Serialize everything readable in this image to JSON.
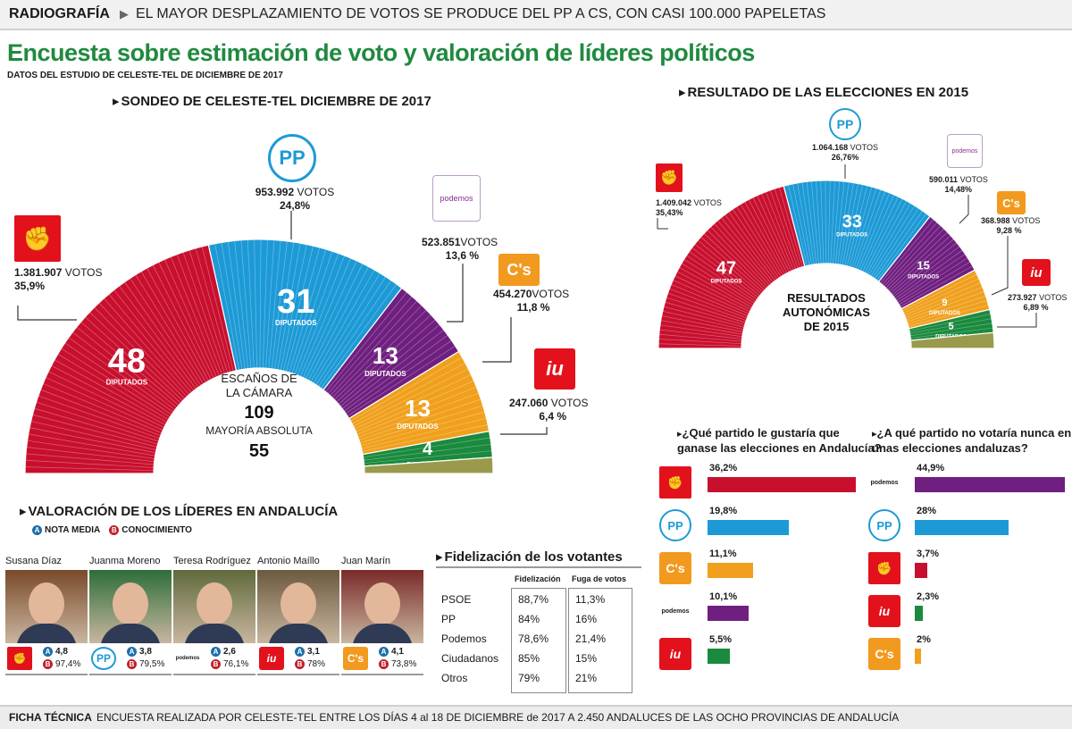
{
  "banner": {
    "kicker": "RADIOGRAFÍA",
    "headline": "EL MAYOR DESPLAZAMIENTO DE VOTOS SE PRODUCE DEL PP A CS, CON CASI 100.000 PAPELETAS"
  },
  "title": "Encuesta sobre estimación de voto y valoración de líderes políticos",
  "subtitle": "DATOS DEL ESTUDIO DE CELESTE-TEL DE DICIEMBRE DE 2017",
  "colors": {
    "psoe": "#c8102e",
    "pp": "#1d9ad6",
    "podemos": "#6f1f7f",
    "cs": "#f0a01d",
    "iu": "#1a8a3e",
    "otros": "#9a9a4c",
    "title_green": "#1f8a3f"
  },
  "chart_data": [
    {
      "type": "pie",
      "subtype": "parliament-semicircle",
      "title": "SONDEO DE CELESTE-TEL DICIEMBRE DE 2017",
      "center_label": [
        "ESCAÑOS DE",
        "LA CÁMARA"
      ],
      "total_seats": "109",
      "majority_label": "MAYORÍA ABSOLUTA",
      "majority_seats": "55",
      "seats_unit": "DIPUTADOS",
      "series": [
        {
          "party": "PSOE",
          "seats": 48,
          "votes": "1.381.907",
          "pct": "35,9%",
          "color_key": "psoe"
        },
        {
          "party": "PP",
          "seats": 31,
          "votes": "953.992",
          "pct": "24,8%",
          "color_key": "pp"
        },
        {
          "party": "Podemos",
          "seats": 13,
          "votes": "523.851",
          "pct": "13,6 %",
          "color_key": "podemos"
        },
        {
          "party": "Cs",
          "seats": 13,
          "votes": "454.270",
          "pct": "11,8 %",
          "color_key": "cs"
        },
        {
          "party": "IU",
          "seats": 4,
          "votes": "247.060",
          "pct": "6,4 %",
          "color_key": "iu"
        },
        {
          "party": "Otros",
          "seats": 0,
          "votes": "",
          "pct": "",
          "color_key": "otros"
        }
      ]
    },
    {
      "type": "pie",
      "subtype": "parliament-semicircle",
      "title": "RESULTADO DE LAS ELECCIONES EN 2015",
      "center_label": [
        "RESULTADOS",
        "AUTONÓMICAS",
        "DE 2015"
      ],
      "seats_unit": "DIPUTADOS",
      "series": [
        {
          "party": "PSOE",
          "seats": 47,
          "votes": "1.409.042",
          "pct": "35,43%",
          "color_key": "psoe"
        },
        {
          "party": "PP",
          "seats": 33,
          "votes": "1.064.168",
          "pct": "26,76%",
          "color_key": "pp"
        },
        {
          "party": "Podemos",
          "seats": 15,
          "votes": "590.011",
          "pct": "14,48%",
          "color_key": "podemos"
        },
        {
          "party": "Cs",
          "seats": 9,
          "votes": "368.988",
          "pct": "9,28 %",
          "color_key": "cs"
        },
        {
          "party": "IU",
          "seats": 5,
          "votes": "273.927",
          "pct": "6,89 %",
          "color_key": "iu"
        },
        {
          "party": "Otros",
          "seats": 0,
          "votes": "",
          "pct": "",
          "color_key": "otros"
        }
      ]
    },
    {
      "type": "bar",
      "orientation": "horizontal",
      "title": "¿Qué partido le gustaría que ganase las elecciones en Andalucía?",
      "categories": [
        "PSOE",
        "PP",
        "Cs",
        "Podemos",
        "IU"
      ],
      "values": [
        36.2,
        19.8,
        11.1,
        10.1,
        5.5
      ],
      "labels": [
        "36,2%",
        "19,8%",
        "11,1%",
        "10,1%",
        "5,5%"
      ],
      "color_keys": [
        "psoe",
        "pp",
        "cs",
        "podemos",
        "iu"
      ]
    },
    {
      "type": "bar",
      "orientation": "horizontal",
      "title": "¿A qué partido no votaría nunca en unas elecciones andaluzas?",
      "categories": [
        "Podemos",
        "PP",
        "PSOE",
        "IU",
        "Cs"
      ],
      "values": [
        44.9,
        28,
        3.7,
        2.3,
        2
      ],
      "labels": [
        "44,9%",
        "28%",
        "3,7%",
        "2,3%",
        "2%"
      ],
      "color_keys": [
        "podemos",
        "pp",
        "psoe",
        "iu",
        "cs"
      ]
    },
    {
      "type": "table",
      "title": "Fidelización de los votantes",
      "columns": [
        "",
        "Fidelización",
        "Fuga de votos"
      ],
      "rows": [
        [
          "PSOE",
          "88,7%",
          "11,3%"
        ],
        [
          "PP",
          "84%",
          "16%"
        ],
        [
          "Podemos",
          "78,6%",
          "21,4%"
        ],
        [
          "Ciudadanos",
          "85%",
          "15%"
        ],
        [
          "Otros",
          "79%",
          "21%"
        ]
      ]
    }
  ],
  "labels": {
    "votos": "VOTOS",
    "pp_logo": "PP",
    "cs_logo": "C's",
    "iu_logo": "iu",
    "psoe_logo": "✊",
    "podemos_logo": "podemos"
  },
  "leaders": {
    "title": "VALORACIÓN DE LOS LÍDERES EN ANDALUCÍA",
    "legend_a": "NOTA MEDIA",
    "legend_b": "CONOCIMIENTO",
    "badge_a": "A",
    "badge_b": "B",
    "items": [
      {
        "name": "Susana Díaz",
        "party": "psoe",
        "nota": "4,8",
        "conocimiento": "97,4%"
      },
      {
        "name": "Juanma Moreno",
        "party": "pp",
        "nota": "3,8",
        "conocimiento": "79,5%"
      },
      {
        "name": "Teresa Rodríguez",
        "party": "podemos",
        "nota": "2,6",
        "conocimiento": "76,1%"
      },
      {
        "name": "Antonio Maíllo",
        "party": "iu",
        "nota": "3,1",
        "conocimiento": "78%"
      },
      {
        "name": "Juan Marín",
        "party": "cs",
        "nota": "4,1",
        "conocimiento": "73,8%"
      }
    ]
  },
  "ficha": {
    "kicker": "FICHA TÉCNICA",
    "text": "ENCUESTA REALIZADA POR CELESTE-TEL ENTRE LOS DÍAS 4 al 18 DE DICIEMBRE de 2017 A 2.450 ANDALUCES DE LAS OCHO PROVINCIAS DE ANDALUCÍA"
  }
}
